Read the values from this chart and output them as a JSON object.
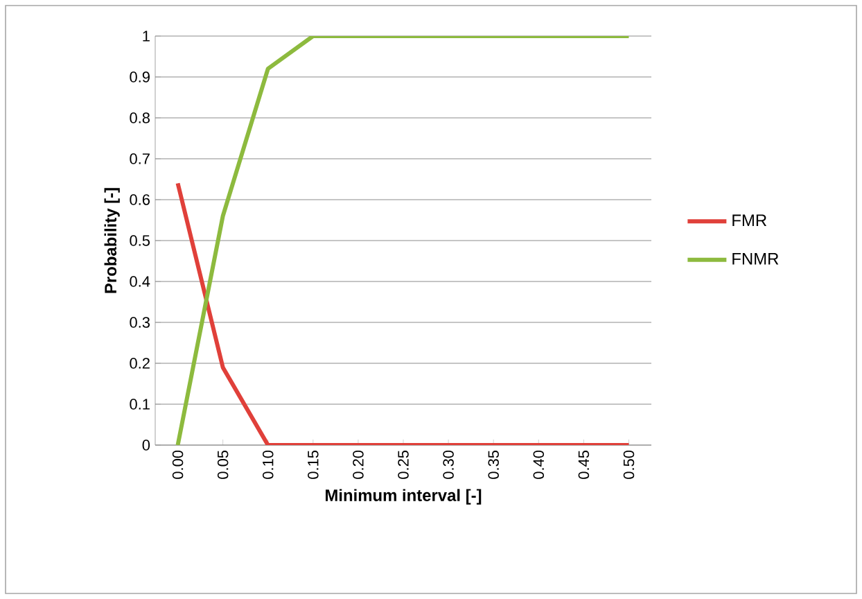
{
  "chart_data": {
    "type": "line",
    "xlabel": "Minimum interval [-]",
    "ylabel": "Probability [-]",
    "categories": [
      "0.00",
      "0.05",
      "0.10",
      "0.15",
      "0.20",
      "0.25",
      "0.30",
      "0.35",
      "0.40",
      "0.45",
      "0.50"
    ],
    "series": [
      {
        "name": "FMR",
        "color": "#e0403a",
        "values": [
          0.64,
          0.19,
          0,
          0,
          0,
          0,
          0,
          0,
          0,
          0,
          0
        ]
      },
      {
        "name": "FNMR",
        "color": "#8dba3e",
        "values": [
          0,
          0.56,
          0.92,
          1,
          1,
          1,
          1,
          1,
          1,
          1,
          1
        ]
      }
    ],
    "ylim": [
      0,
      1
    ],
    "yticks": [
      0,
      0.1,
      0.2,
      0.3,
      0.4,
      0.5,
      0.6,
      0.7,
      0.8,
      0.9,
      1
    ],
    "grid": "y",
    "legend": "right",
    "marker": "none",
    "line_style": "solid"
  }
}
